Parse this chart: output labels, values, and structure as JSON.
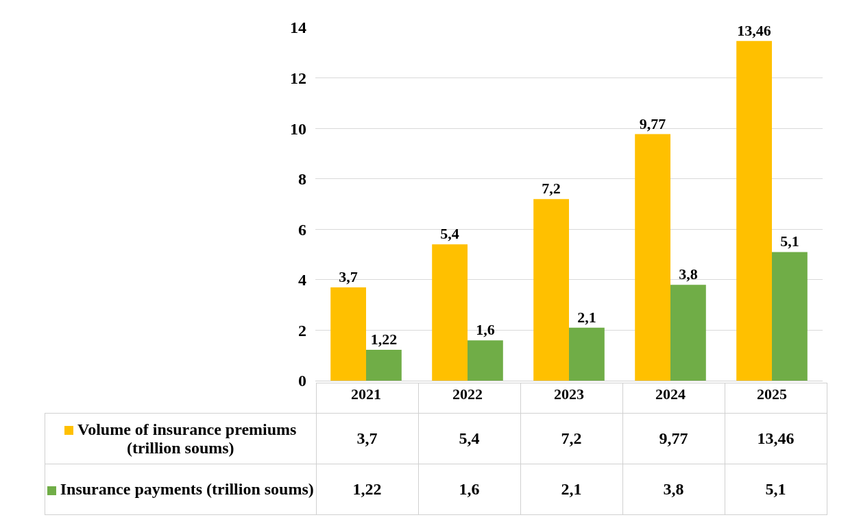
{
  "chart_data": {
    "type": "bar",
    "categories": [
      "2021",
      "2022",
      "2023",
      "2024",
      "2025"
    ],
    "series": [
      {
        "name": "Volume of insurance premiums (trillion soums)",
        "color": "#ffc000",
        "values": [
          3.7,
          5.4,
          7.2,
          9.77,
          13.46
        ],
        "value_labels": [
          "3,7",
          "5,4",
          "7,2",
          "9,77",
          "13,46"
        ]
      },
      {
        "name": "Insurance payments (trillion soums)",
        "color": "#70ad47",
        "values": [
          1.22,
          1.6,
          2.1,
          3.8,
          5.1
        ],
        "value_labels": [
          "1,22",
          "1,6",
          "2,1",
          "3,8",
          "5,1"
        ]
      }
    ],
    "ylim": [
      0,
      14
    ],
    "yticks": [
      0,
      2,
      4,
      6,
      8,
      10,
      12,
      14
    ],
    "grid": "y",
    "legend": "bottom"
  }
}
